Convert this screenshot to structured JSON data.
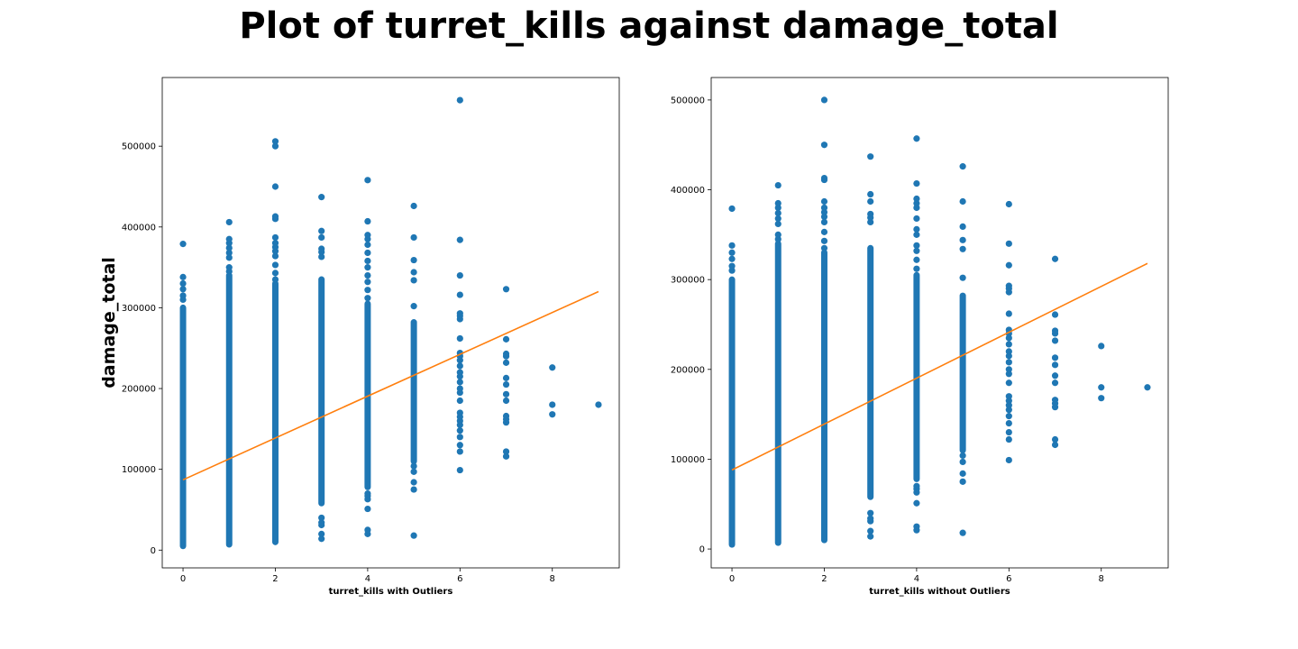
{
  "title": "Plot of turret_kills against damage_total",
  "colors": {
    "points": "#1f77b4",
    "fit_line": "#ff7f0e",
    "axes": "#000000"
  },
  "chart_data": [
    {
      "type": "scatter",
      "xlabel": "turret_kills with Outliers",
      "ylabel": "damage_total",
      "xlim": [
        -0.45,
        9.45
      ],
      "ylim": [
        -22000,
        585000
      ],
      "xticks": [
        0,
        2,
        4,
        6,
        8
      ],
      "yticks": [
        0,
        100000,
        200000,
        300000,
        400000,
        500000
      ],
      "grid": false,
      "series": [
        {
          "type": "scatter",
          "columns": [
            {
              "x": 0,
              "y_range": [
                5000,
                300000
              ],
              "extra": [
                310000,
                315000,
                323000,
                330000,
                338000,
                379000
              ]
            },
            {
              "x": 1,
              "y_range": [
                7000,
                340000
              ],
              "extra": [
                345000,
                350000,
                362000,
                368000,
                374000,
                380000,
                385000,
                406000
              ]
            },
            {
              "x": 2,
              "y_range": [
                10000,
                330000
              ],
              "extra": [
                335000,
                343000,
                353000,
                364000,
                370000,
                375000,
                380000,
                387000,
                410000,
                413000,
                450000,
                500000,
                506000
              ]
            },
            {
              "x": 3,
              "y_range": [
                58000,
                335000
              ],
              "extra": [
                14000,
                20000,
                31000,
                34000,
                40000,
                363000,
                369000,
                373000,
                387000,
                395000,
                437000
              ]
            },
            {
              "x": 4,
              "y_range": [
                78000,
                305000
              ],
              "extra": [
                20000,
                25000,
                51000,
                63000,
                67000,
                70000,
                312000,
                322000,
                332000,
                340000,
                350000,
                358000,
                368000,
                378000,
                385000,
                390000,
                407000,
                458000
              ]
            },
            {
              "x": 5,
              "y_range": [
                110000,
                282000
              ],
              "extra": [
                18000,
                75000,
                84000,
                97000,
                104000,
                302000,
                334000,
                344000,
                359000,
                387000,
                426000
              ]
            },
            {
              "x": 6,
              "y": [
                99000,
                122000,
                130000,
                140000,
                148000,
                155000,
                160000,
                165000,
                170000,
                185000,
                195000,
                200000,
                208000,
                215000,
                220000,
                228000,
                235000,
                240000,
                244000,
                262000,
                286000,
                290000,
                293000,
                316000,
                340000,
                384000,
                557000
              ]
            },
            {
              "x": 7,
              "y": [
                116000,
                122000,
                158000,
                162000,
                166000,
                185000,
                193000,
                205000,
                213000,
                232000,
                240000,
                243000,
                261000,
                323000
              ]
            },
            {
              "x": 8,
              "y": [
                168000,
                180000,
                226000
              ]
            },
            {
              "x": 9,
              "y": [
                180000
              ]
            }
          ]
        },
        {
          "type": "line",
          "x": [
            0,
            9
          ],
          "y": [
            87000,
            320000
          ]
        }
      ]
    },
    {
      "type": "scatter",
      "xlabel": "turret_kills without Outliers",
      "ylabel": "",
      "xlim": [
        -0.45,
        9.45
      ],
      "ylim": [
        -21000,
        525000
      ],
      "xticks": [
        0,
        2,
        4,
        6,
        8
      ],
      "yticks": [
        0,
        100000,
        200000,
        300000,
        400000,
        500000
      ],
      "grid": false,
      "series": [
        {
          "type": "scatter",
          "columns": [
            {
              "x": 0,
              "y_range": [
                5000,
                300000
              ],
              "extra": [
                310000,
                315000,
                323000,
                330000,
                338000,
                379000
              ]
            },
            {
              "x": 1,
              "y_range": [
                7000,
                340000
              ],
              "extra": [
                345000,
                350000,
                362000,
                368000,
                374000,
                380000,
                385000,
                405000
              ]
            },
            {
              "x": 2,
              "y_range": [
                10000,
                330000
              ],
              "extra": [
                335000,
                343000,
                353000,
                364000,
                370000,
                375000,
                380000,
                387000,
                411000,
                413000,
                450000,
                500000
              ]
            },
            {
              "x": 3,
              "y_range": [
                58000,
                335000
              ],
              "extra": [
                14000,
                20000,
                31000,
                34000,
                40000,
                364000,
                369000,
                373000,
                387000,
                395000,
                437000
              ]
            },
            {
              "x": 4,
              "y_range": [
                78000,
                305000
              ],
              "extra": [
                21000,
                25000,
                51000,
                63000,
                67000,
                70000,
                312000,
                322000,
                332000,
                338000,
                350000,
                356000,
                368000,
                380000,
                385000,
                390000,
                407000,
                457000
              ]
            },
            {
              "x": 5,
              "y_range": [
                110000,
                282000
              ],
              "extra": [
                18000,
                75000,
                84000,
                97000,
                104000,
                302000,
                334000,
                344000,
                359000,
                387000,
                426000
              ]
            },
            {
              "x": 6,
              "y": [
                99000,
                122000,
                130000,
                140000,
                148000,
                155000,
                160000,
                165000,
                170000,
                185000,
                195000,
                200000,
                208000,
                215000,
                220000,
                228000,
                235000,
                240000,
                244000,
                262000,
                286000,
                290000,
                293000,
                316000,
                340000,
                384000
              ]
            },
            {
              "x": 7,
              "y": [
                116000,
                122000,
                158000,
                162000,
                166000,
                185000,
                193000,
                205000,
                213000,
                232000,
                240000,
                243000,
                261000,
                323000
              ]
            },
            {
              "x": 8,
              "y": [
                168000,
                180000,
                226000
              ]
            },
            {
              "x": 9,
              "y": [
                180000
              ]
            }
          ]
        },
        {
          "type": "line",
          "x": [
            0,
            9
          ],
          "y": [
            88000,
            318000
          ]
        }
      ]
    }
  ]
}
